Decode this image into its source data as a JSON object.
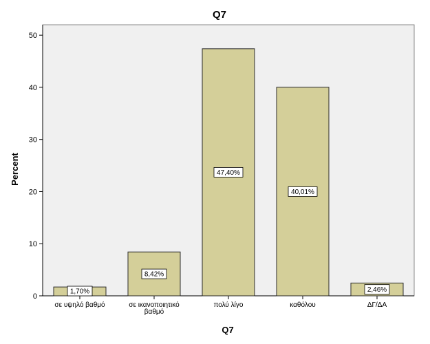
{
  "chart_data": {
    "type": "bar",
    "title": "Q7",
    "xlabel": "Q7",
    "ylabel": "Percent",
    "categories": [
      [
        "σε υψηλό βαθμό"
      ],
      [
        "σε ικανοποιητικό",
        "βαθμό"
      ],
      [
        "πολύ λίγο"
      ],
      [
        "καθόλου"
      ],
      [
        "ΔΓ/ΔΑ"
      ]
    ],
    "values": [
      1.7,
      8.42,
      47.4,
      40.01,
      2.46
    ],
    "data_labels": [
      "1,70%",
      "8,42%",
      "47,40%",
      "40,01%",
      "2,46%"
    ],
    "ylim": [
      0,
      52
    ],
    "yticks": [
      0,
      10,
      20,
      30,
      40,
      50
    ],
    "grid": false,
    "legend": "none",
    "colors": {
      "bar_fill": "#d4cf99",
      "bar_stroke": "#2b2b2b",
      "plot_background": "#f0f0f0",
      "axis": "#000000"
    }
  }
}
